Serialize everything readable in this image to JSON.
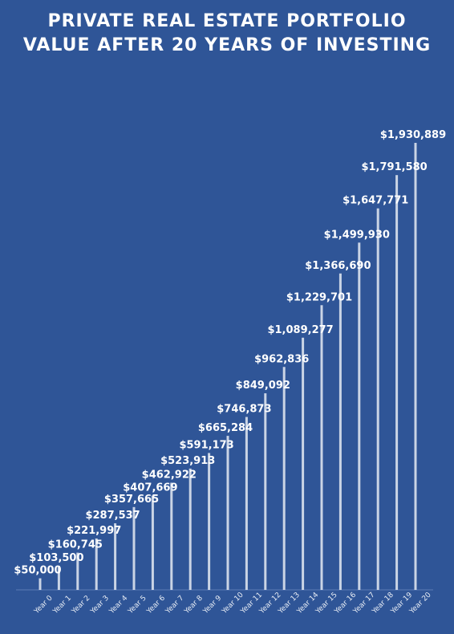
{
  "title": {
    "line1": "PRIVATE REAL ESTATE PORTFOLIO",
    "line2": "VALUE AFTER 20 YEARS OF INVESTING"
  },
  "colors": {
    "background": "#2f5597",
    "bar": "#ffffff",
    "label": "#ffffff",
    "tick": "#e8edf5"
  },
  "chart_data": {
    "type": "bar",
    "title": "PRIVATE REAL ESTATE PORTFOLIO VALUE AFTER 20 YEARS OF INVESTING",
    "xlabel": "",
    "ylabel": "",
    "grid": false,
    "legend": "none",
    "categories": [
      "Year 0",
      "Year 1",
      "Year 2",
      "Year 3",
      "Year 4",
      "Year 5",
      "Year 6",
      "Year 7",
      "Year 8",
      "Year 9",
      "Year 10",
      "Year 11",
      "Year 12",
      "Year 13",
      "Year 14",
      "Year 15",
      "Year 16",
      "Year 17",
      "Year 18",
      "Year 19",
      "Year 20"
    ],
    "values": [
      50000,
      103500,
      160745,
      221997,
      287537,
      357665,
      407669,
      462922,
      523913,
      591173,
      665284,
      746873,
      849092,
      962836,
      1089277,
      1229701,
      1366690,
      1499930,
      1647771,
      1791580,
      1930889
    ],
    "data_labels": [
      "$50,000",
      "$103,500",
      "$160,745",
      "$221,997",
      "$287,537",
      "$357,665",
      "$407,669",
      "$462,922",
      "$523,913",
      "$591,173",
      "$665,284",
      "$746,873",
      "$849,092",
      "$962,836",
      "$1,089,277",
      "$1,229,701",
      "$1,366,690",
      "$1,499,930",
      "$1,647,771",
      "$1,791,580",
      "$1,930,889"
    ],
    "ylim": [
      0,
      2000000
    ]
  }
}
